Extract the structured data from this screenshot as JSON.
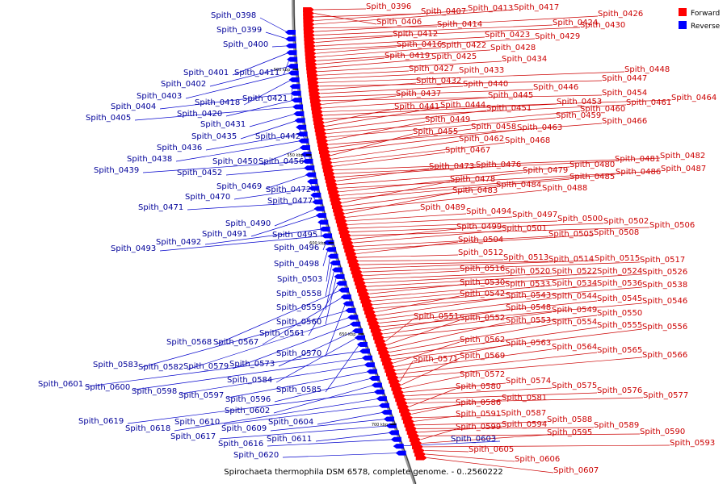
{
  "legend": {
    "forward": {
      "label": "Forward",
      "color": "#ff0000"
    },
    "reverse": {
      "label": "Reverse",
      "color": "#0000ff"
    }
  },
  "caption": "Spirochaeta thermophila DSM 6578, complete genome. - 0..2560222",
  "scale_ticks": [
    "500 kbp",
    "550 kbp",
    "600 kbp",
    "650 kbp",
    "700 kbp"
  ],
  "forward_genes": [
    [
      "Spith_0396",
      453,
      7
    ],
    [
      "Spith_0406",
      466,
      26
    ],
    [
      "Spith_0407",
      521,
      13
    ],
    [
      "Spith_0413",
      579,
      9
    ],
    [
      "Spith_0417",
      636,
      8
    ],
    [
      "Spith_0414",
      541,
      29
    ],
    [
      "Spith_0426",
      740,
      16
    ],
    [
      "Spith_0424",
      684,
      27
    ],
    [
      "Spith_0430",
      718,
      30
    ],
    [
      "Spith_0412",
      486,
      41
    ],
    [
      "Spith_0423",
      600,
      42
    ],
    [
      "Spith_0429",
      662,
      44
    ],
    [
      "Spith_0416",
      491,
      54
    ],
    [
      "Spith_0422",
      546,
      55
    ],
    [
      "Spith_0428",
      607,
      58
    ],
    [
      "Spith_0419",
      476,
      68
    ],
    [
      "Spith_0425",
      534,
      69
    ],
    [
      "Spith_0434",
      621,
      72
    ],
    [
      "Spith_0427",
      506,
      84
    ],
    [
      "Spith_0433",
      568,
      86
    ],
    [
      "Spith_0448",
      773,
      85
    ],
    [
      "Spith_0447",
      745,
      96
    ],
    [
      "Spith_0432",
      515,
      99
    ],
    [
      "Spith_0440",
      573,
      103
    ],
    [
      "Spith_0446",
      660,
      107
    ],
    [
      "Spith_0454",
      745,
      114
    ],
    [
      "Spith_0437",
      490,
      115
    ],
    [
      "Spith_0445",
      604,
      117
    ],
    [
      "Spith_0464",
      831,
      120
    ],
    [
      "Spith_0453",
      689,
      125
    ],
    [
      "Spith_0461",
      775,
      126
    ],
    [
      "Spith_0441",
      488,
      131
    ],
    [
      "Spith_0444",
      545,
      129
    ],
    [
      "Spith_0451",
      602,
      133
    ],
    [
      "Spith_0460",
      718,
      134
    ],
    [
      "Spith_0459",
      688,
      142
    ],
    [
      "Spith_0449",
      526,
      147
    ],
    [
      "Spith_0466",
      745,
      149
    ],
    [
      "Spith_0458",
      583,
      156
    ],
    [
      "Spith_0463",
      640,
      157
    ],
    [
      "Spith_0455",
      511,
      162
    ],
    [
      "Spith_0462",
      568,
      171
    ],
    [
      "Spith_0468",
      625,
      173
    ],
    [
      "Spith_0467",
      551,
      185
    ],
    [
      "Spith_0482",
      817,
      192
    ],
    [
      "Spith_0481",
      761,
      196
    ],
    [
      "Spith_0476",
      589,
      203
    ],
    [
      "Spith_0473",
      531,
      205
    ],
    [
      "Spith_0480",
      705,
      203
    ],
    [
      "Spith_0487",
      818,
      208
    ],
    [
      "Spith_0479",
      647,
      210
    ],
    [
      "Spith_0486",
      762,
      212
    ],
    [
      "Spith_0485",
      705,
      218
    ],
    [
      "Spith_0478",
      557,
      221
    ],
    [
      "Spith_0484",
      614,
      228
    ],
    [
      "Spith_0488",
      671,
      232
    ],
    [
      "Spith_0483",
      560,
      235
    ],
    [
      "Spith_0489",
      520,
      256
    ],
    [
      "Spith_0494",
      577,
      261
    ],
    [
      "Spith_0497",
      634,
      265
    ],
    [
      "Spith_0500",
      690,
      270
    ],
    [
      "Spith_0502",
      747,
      273
    ],
    [
      "Spith_0506",
      804,
      278
    ],
    [
      "Spith_0499",
      565,
      280
    ],
    [
      "Spith_0501",
      621,
      282
    ],
    [
      "Spith_0505",
      679,
      289
    ],
    [
      "Spith_0508",
      735,
      287
    ],
    [
      "Spith_0504",
      567,
      296
    ],
    [
      "Spith_0512",
      567,
      312
    ],
    [
      "Spith_0513",
      623,
      318
    ],
    [
      "Spith_0514",
      679,
      320
    ],
    [
      "Spith_0515",
      736,
      319
    ],
    [
      "Spith_0517",
      792,
      321
    ],
    [
      "Spith_0516",
      569,
      332
    ],
    [
      "Spith_0520",
      625,
      335
    ],
    [
      "Spith_0522",
      683,
      335
    ],
    [
      "Spith_0524",
      739,
      335
    ],
    [
      "Spith_0526",
      795,
      336
    ],
    [
      "Spith_0530",
      569,
      349
    ],
    [
      "Spith_0533",
      625,
      351
    ],
    [
      "Spith_0534",
      683,
      350
    ],
    [
      "Spith_0536",
      739,
      350
    ],
    [
      "Spith_0538",
      795,
      352
    ],
    [
      "Spith_0542",
      569,
      363
    ],
    [
      "Spith_0543",
      626,
      365
    ],
    [
      "Spith_0544",
      683,
      366
    ],
    [
      "Spith_0545",
      739,
      369
    ],
    [
      "Spith_0546",
      795,
      372
    ],
    [
      "Spith_0548",
      626,
      380
    ],
    [
      "Spith_0549",
      683,
      383
    ],
    [
      "Spith_0550",
      739,
      387
    ],
    [
      "Spith_0551",
      512,
      391
    ],
    [
      "Spith_0552",
      569,
      393
    ],
    [
      "Spith_0553",
      626,
      396
    ],
    [
      "Spith_0554",
      683,
      398
    ],
    [
      "Spith_0555",
      739,
      402
    ],
    [
      "Spith_0556",
      795,
      404
    ],
    [
      "Spith_0562",
      569,
      420
    ],
    [
      "Spith_0563",
      626,
      424
    ],
    [
      "Spith_0564",
      683,
      429
    ],
    [
      "Spith_0565",
      739,
      433
    ],
    [
      "Spith_0566",
      795,
      439
    ],
    [
      "Spith_0571",
      511,
      444
    ],
    [
      "Spith_0569",
      569,
      440
    ],
    [
      "Spith_0572",
      569,
      463
    ],
    [
      "Spith_0574",
      626,
      471
    ],
    [
      "Spith_0575",
      683,
      477
    ],
    [
      "Spith_0576",
      739,
      483
    ],
    [
      "Spith_0577",
      796,
      489
    ],
    [
      "Spith_0580",
      564,
      478
    ],
    [
      "Spith_0581",
      621,
      492
    ],
    [
      "Spith_0586",
      564,
      498
    ],
    [
      "Spith_0587",
      620,
      511
    ],
    [
      "Spith_0591",
      564,
      512
    ],
    [
      "Spith_0588",
      677,
      519
    ],
    [
      "Spith_0589",
      735,
      526
    ],
    [
      "Spith_0594",
      621,
      525
    ],
    [
      "Spith_0590",
      792,
      534
    ],
    [
      "Spith_0599",
      564,
      528
    ],
    [
      "Spith_0595",
      677,
      535
    ],
    [
      "Spith_0593",
      829,
      548
    ],
    [
      "Spith_0605",
      580,
      556
    ],
    [
      "Spith_0606",
      637,
      568
    ],
    [
      "Spith_0607",
      685,
      582
    ]
  ],
  "reverse_genes": [
    [
      "Spith_0398",
      261,
      18
    ],
    [
      "Spith_0399",
      268,
      36
    ],
    [
      "Spith_0400",
      276,
      54
    ],
    [
      "Spith_0401",
      227,
      89
    ],
    [
      "Spith_0411",
      290,
      89
    ],
    [
      "Spith_0402",
      199,
      103
    ],
    [
      "Spith_0403",
      169,
      118
    ],
    [
      "Spith_0418",
      241,
      126
    ],
    [
      "Spith_0421",
      300,
      121
    ],
    [
      "Spith_0404",
      137,
      131
    ],
    [
      "Spith_0420",
      219,
      140
    ],
    [
      "Spith_0405",
      106,
      145
    ],
    [
      "Spith_0431",
      248,
      153
    ],
    [
      "Spith_0435",
      237,
      168
    ],
    [
      "Spith_0442",
      316,
      168
    ],
    [
      "Spith_0436",
      194,
      182
    ],
    [
      "Spith_0438",
      157,
      196
    ],
    [
      "Spith_0450",
      263,
      199
    ],
    [
      "Spith_0456",
      320,
      199
    ],
    [
      "Spith_0439",
      116,
      210
    ],
    [
      "Spith_0452",
      219,
      213
    ],
    [
      "Spith_0469",
      268,
      230
    ],
    [
      "Spith_0472",
      329,
      234
    ],
    [
      "Spith_0470",
      229,
      243
    ],
    [
      "Spith_0477",
      331,
      248
    ],
    [
      "Spith_0471",
      171,
      256
    ],
    [
      "Spith_0490",
      279,
      276
    ],
    [
      "Spith_0491",
      250,
      289
    ],
    [
      "Spith_0495",
      337,
      290
    ],
    [
      "Spith_0492",
      193,
      299
    ],
    [
      "Spith_0493",
      137,
      307
    ],
    [
      "Spith_0496",
      339,
      306
    ],
    [
      "Spith_0498",
      339,
      326
    ],
    [
      "Spith_0503",
      343,
      345
    ],
    [
      "Spith_0558",
      342,
      363
    ],
    [
      "Spith_0559",
      342,
      380
    ],
    [
      "Spith_0560",
      342,
      398
    ],
    [
      "Spith_0561",
      321,
      412
    ],
    [
      "Spith_0568",
      206,
      423
    ],
    [
      "Spith_0567",
      264,
      423
    ],
    [
      "Spith_0570",
      342,
      437
    ],
    [
      "Spith_0583",
      115,
      451
    ],
    [
      "Spith_0582",
      171,
      454
    ],
    [
      "Spith_0579",
      227,
      453
    ],
    [
      "Spith_0573",
      284,
      450
    ],
    [
      "Spith_0584",
      281,
      470
    ],
    [
      "Spith_0585",
      342,
      482
    ],
    [
      "Spith_0601",
      47,
      475
    ],
    [
      "Spith_0600",
      105,
      479
    ],
    [
      "Spith_0598",
      163,
      484
    ],
    [
      "Spith_0597",
      221,
      489
    ],
    [
      "Spith_0596",
      279,
      494
    ],
    [
      "Spith_0602",
      278,
      508
    ],
    [
      "Spith_0619",
      97,
      521
    ],
    [
      "Spith_0618",
      155,
      530
    ],
    [
      "Spith_0610",
      216,
      522
    ],
    [
      "Spith_0604",
      332,
      522
    ],
    [
      "Spith_0609",
      274,
      530
    ],
    [
      "Spith_0617",
      211,
      540
    ],
    [
      "Spith_0611",
      330,
      543
    ],
    [
      "Spith_0616",
      270,
      549
    ],
    [
      "Spith_0603",
      558,
      543
    ],
    [
      "Spith_0620",
      289,
      563
    ]
  ]
}
